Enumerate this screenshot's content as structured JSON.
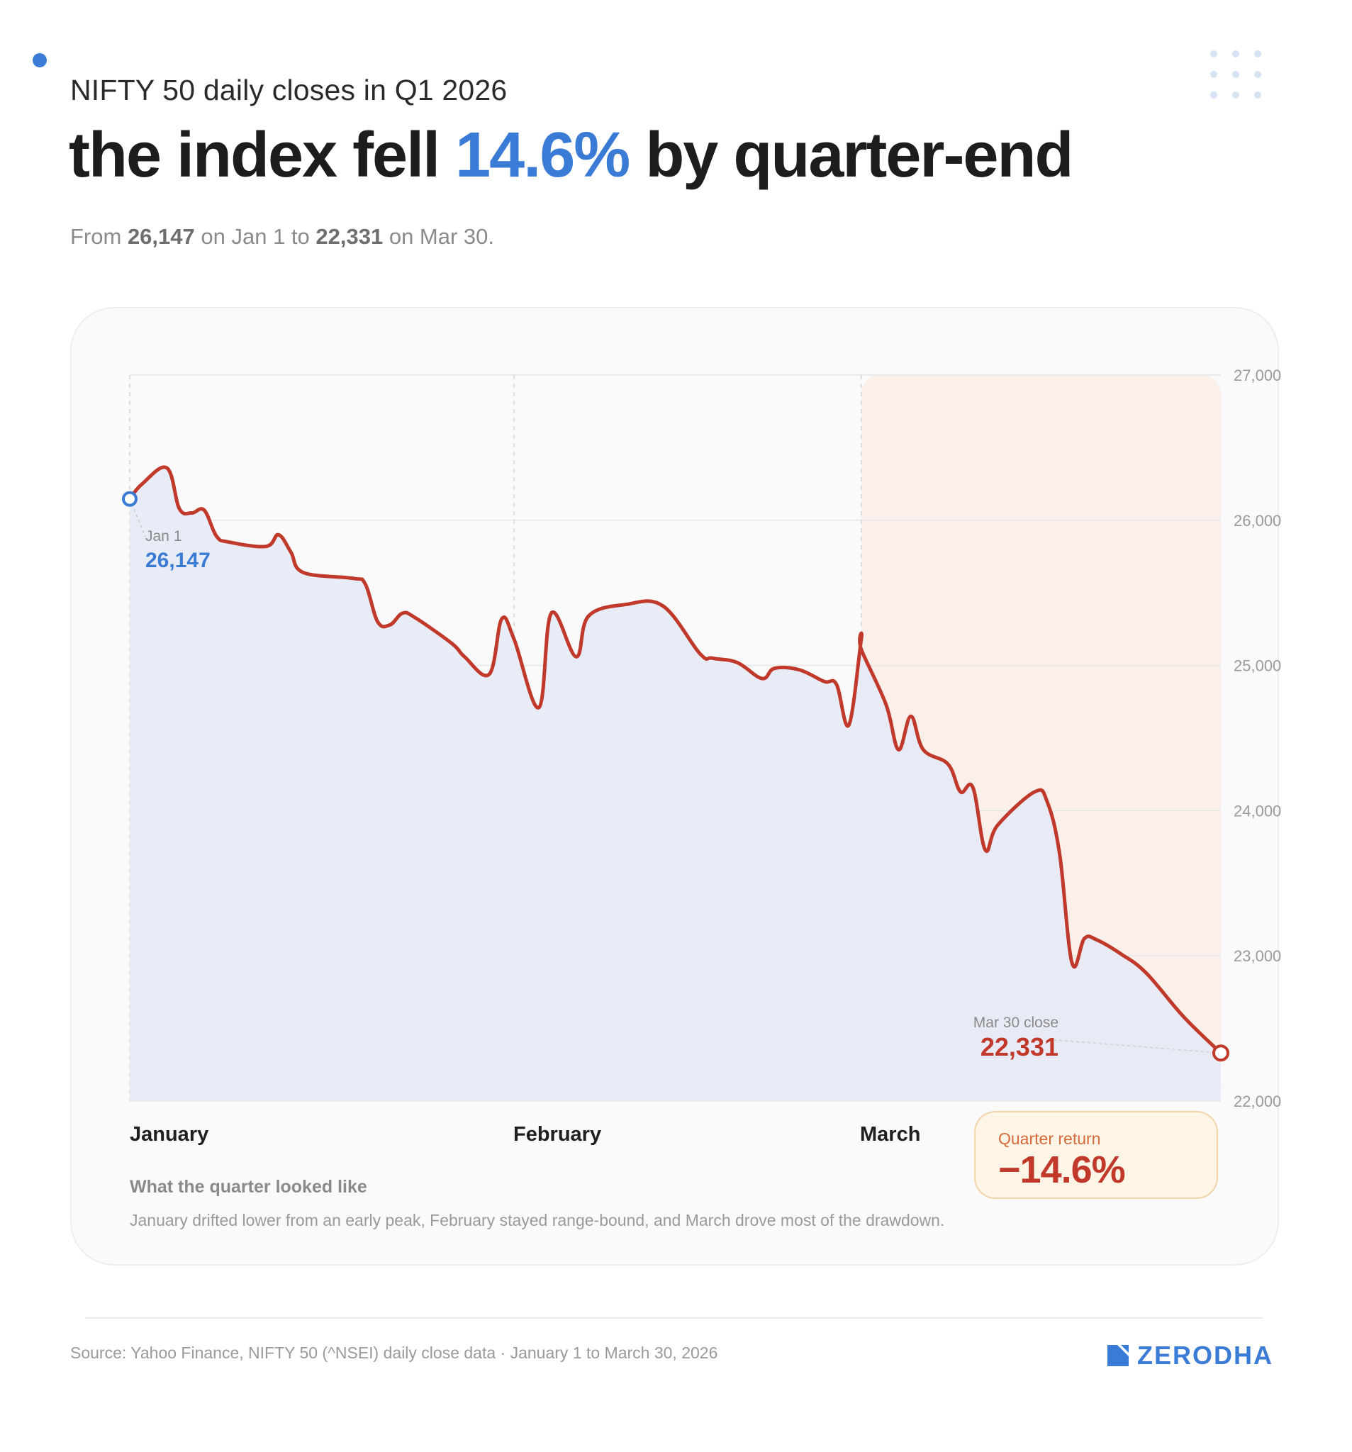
{
  "header": {
    "subtitle": "NIFTY 50 daily closes in Q1 2026",
    "headline_pre": "the index fell ",
    "headline_highlight": "14.6%",
    "headline_post": " by quarter-end",
    "lede_from": "From ",
    "lede_start_value": "26,147",
    "lede_mid": " on Jan 1 to ",
    "lede_end_value": "22,331",
    "lede_post": " on Mar 30."
  },
  "annotations": {
    "start_label": "Jan 1",
    "start_value": "26,147",
    "end_label": "Mar 30 close",
    "end_value": "22,331"
  },
  "months": [
    "January",
    "February",
    "March"
  ],
  "note": {
    "title": "What the quarter looked like",
    "body": "January drifted lower from an early peak, February stayed range-bound, and March drove most of the drawdown."
  },
  "quarter_return": {
    "label": "Quarter return",
    "value": "−14.6%"
  },
  "footer": {
    "source": "Source: Yahoo Finance, NIFTY 50 (^NSEI) daily close data · January 1 to March 30, 2026",
    "brand": "ZERODHA"
  },
  "colors": {
    "accent_blue": "#3a7bd5",
    "line_red": "#c0392b",
    "area_fill": "#e6eaf5",
    "march_shade": "#faefe9",
    "brand_blue": "#3a7bd5"
  },
  "chart_data": {
    "type": "area",
    "title": "",
    "xlabel": "",
    "ylabel": "",
    "x_axis": "date",
    "x_range": [
      "2026-01-01",
      "2026-03-30"
    ],
    "ylim": [
      22000,
      27000
    ],
    "yticks": [
      22000,
      23000,
      24000,
      25000,
      26000,
      27000
    ],
    "ytick_labels": [
      "22,000",
      "23,000",
      "24,000",
      "25,000",
      "26,000",
      "27,000"
    ],
    "y_axis_side": "right",
    "grid": true,
    "month_boundaries": [
      "2026-01-01",
      "2026-02-01",
      "2026-03-01"
    ],
    "highlight_range": [
      "2026-03-01",
      "2026-03-30"
    ],
    "series": [
      {
        "points": [
          [
            "2026-01-01",
            26147
          ],
          [
            "2026-01-02",
            26250
          ],
          [
            "2026-01-04",
            26360
          ],
          [
            "2026-01-05",
            26080
          ],
          [
            "2026-01-06",
            26050
          ],
          [
            "2026-01-07",
            26070
          ],
          [
            "2026-01-08",
            25890
          ],
          [
            "2026-01-09",
            25850
          ],
          [
            "2026-01-12",
            25820
          ],
          [
            "2026-01-13",
            25900
          ],
          [
            "2026-01-14",
            25780
          ],
          [
            "2026-01-15",
            25640
          ],
          [
            "2026-01-19",
            25600
          ],
          [
            "2026-01-20",
            25560
          ],
          [
            "2026-01-21",
            25300
          ],
          [
            "2026-01-22",
            25280
          ],
          [
            "2026-01-23",
            25360
          ],
          [
            "2026-01-24",
            25330
          ],
          [
            "2026-01-27",
            25150
          ],
          [
            "2026-01-28",
            25060
          ],
          [
            "2026-01-30",
            24940
          ],
          [
            "2026-01-31",
            25320
          ],
          [
            "2026-02-01",
            25180
          ],
          [
            "2026-02-03",
            24710
          ],
          [
            "2026-02-04",
            25360
          ],
          [
            "2026-02-06",
            25060
          ],
          [
            "2026-02-07",
            25340
          ],
          [
            "2026-02-10",
            25420
          ],
          [
            "2026-02-13",
            25410
          ],
          [
            "2026-02-16",
            25080
          ],
          [
            "2026-02-17",
            25050
          ],
          [
            "2026-02-19",
            25020
          ],
          [
            "2026-02-21",
            24910
          ],
          [
            "2026-02-22",
            24980
          ],
          [
            "2026-02-24",
            24970
          ],
          [
            "2026-02-26",
            24890
          ],
          [
            "2026-02-27",
            24870
          ],
          [
            "2026-02-28",
            24590
          ],
          [
            "2026-02-29",
            25180
          ],
          [
            "2026-03-01",
            25110
          ],
          [
            "2026-03-03",
            24730
          ],
          [
            "2026-03-04",
            24420
          ],
          [
            "2026-03-05",
            24650
          ],
          [
            "2026-03-06",
            24420
          ],
          [
            "2026-03-08",
            24320
          ],
          [
            "2026-03-09",
            24130
          ],
          [
            "2026-03-10",
            24160
          ],
          [
            "2026-03-11",
            23730
          ],
          [
            "2026-03-12",
            23900
          ],
          [
            "2026-03-15",
            24130
          ],
          [
            "2026-03-16",
            24060
          ],
          [
            "2026-03-17",
            23700
          ],
          [
            "2026-03-18",
            22950
          ],
          [
            "2026-03-19",
            23120
          ],
          [
            "2026-03-20",
            23110
          ],
          [
            "2026-03-22",
            23010
          ],
          [
            "2026-03-24",
            22880
          ],
          [
            "2026-03-27",
            22580
          ],
          [
            "2026-03-30",
            22331
          ]
        ]
      }
    ],
    "annotations": [
      {
        "date": "2026-01-01",
        "value": 26147,
        "label": "Jan 1",
        "text": "26,147"
      },
      {
        "date": "2026-03-30",
        "value": 22331,
        "label": "Mar 30 close",
        "text": "22,331"
      }
    ],
    "callout": {
      "label": "Quarter return",
      "value": "−14.6%"
    }
  }
}
